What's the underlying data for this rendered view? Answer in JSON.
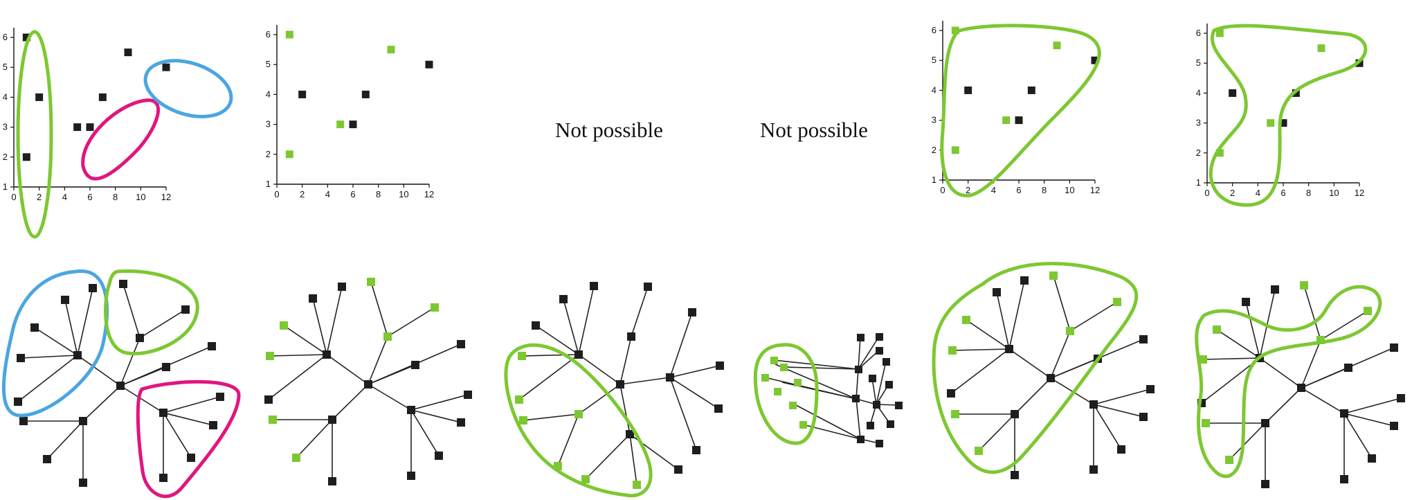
{
  "colors": {
    "black_point": "#1e1e1e",
    "green_point": "#7dc832",
    "green_outline": "#7dc832",
    "blue_outline": "#4ba6e1",
    "magenta_outline": "#e0167f"
  },
  "messages": {
    "not_possible_1": "Not possible",
    "not_possible_2": "Not possible"
  },
  "plots": {
    "x_ticks": [
      "0",
      "2",
      "4",
      "6",
      "8",
      "10",
      "12"
    ],
    "y_ticks": [
      "1",
      "2",
      "3",
      "4",
      "5",
      "6"
    ],
    "xlim": [
      0,
      12
    ],
    "ylim": [
      1,
      6
    ],
    "points": [
      {
        "x": 1,
        "y": 6
      },
      {
        "x": 1,
        "y": 2
      },
      {
        "x": 2,
        "y": 4
      },
      {
        "x": 5,
        "y": 3
      },
      {
        "x": 6,
        "y": 3
      },
      {
        "x": 7,
        "y": 4
      },
      {
        "x": 9,
        "y": 5.5
      },
      {
        "x": 12,
        "y": 5
      }
    ],
    "panels": [
      {
        "id": "plot-clusters",
        "green": [],
        "outlines": [
          "green",
          "magenta",
          "blue"
        ]
      },
      {
        "id": "plot-selection",
        "green": [
          0,
          1,
          3,
          6
        ],
        "outlines": []
      },
      {
        "id": "plot-region-a",
        "green": [
          0,
          1,
          3,
          6
        ],
        "outlines": [
          "green"
        ]
      },
      {
        "id": "plot-region-b",
        "green": [
          0,
          1,
          3,
          6
        ],
        "outlines": [
          "green"
        ]
      }
    ]
  }
}
